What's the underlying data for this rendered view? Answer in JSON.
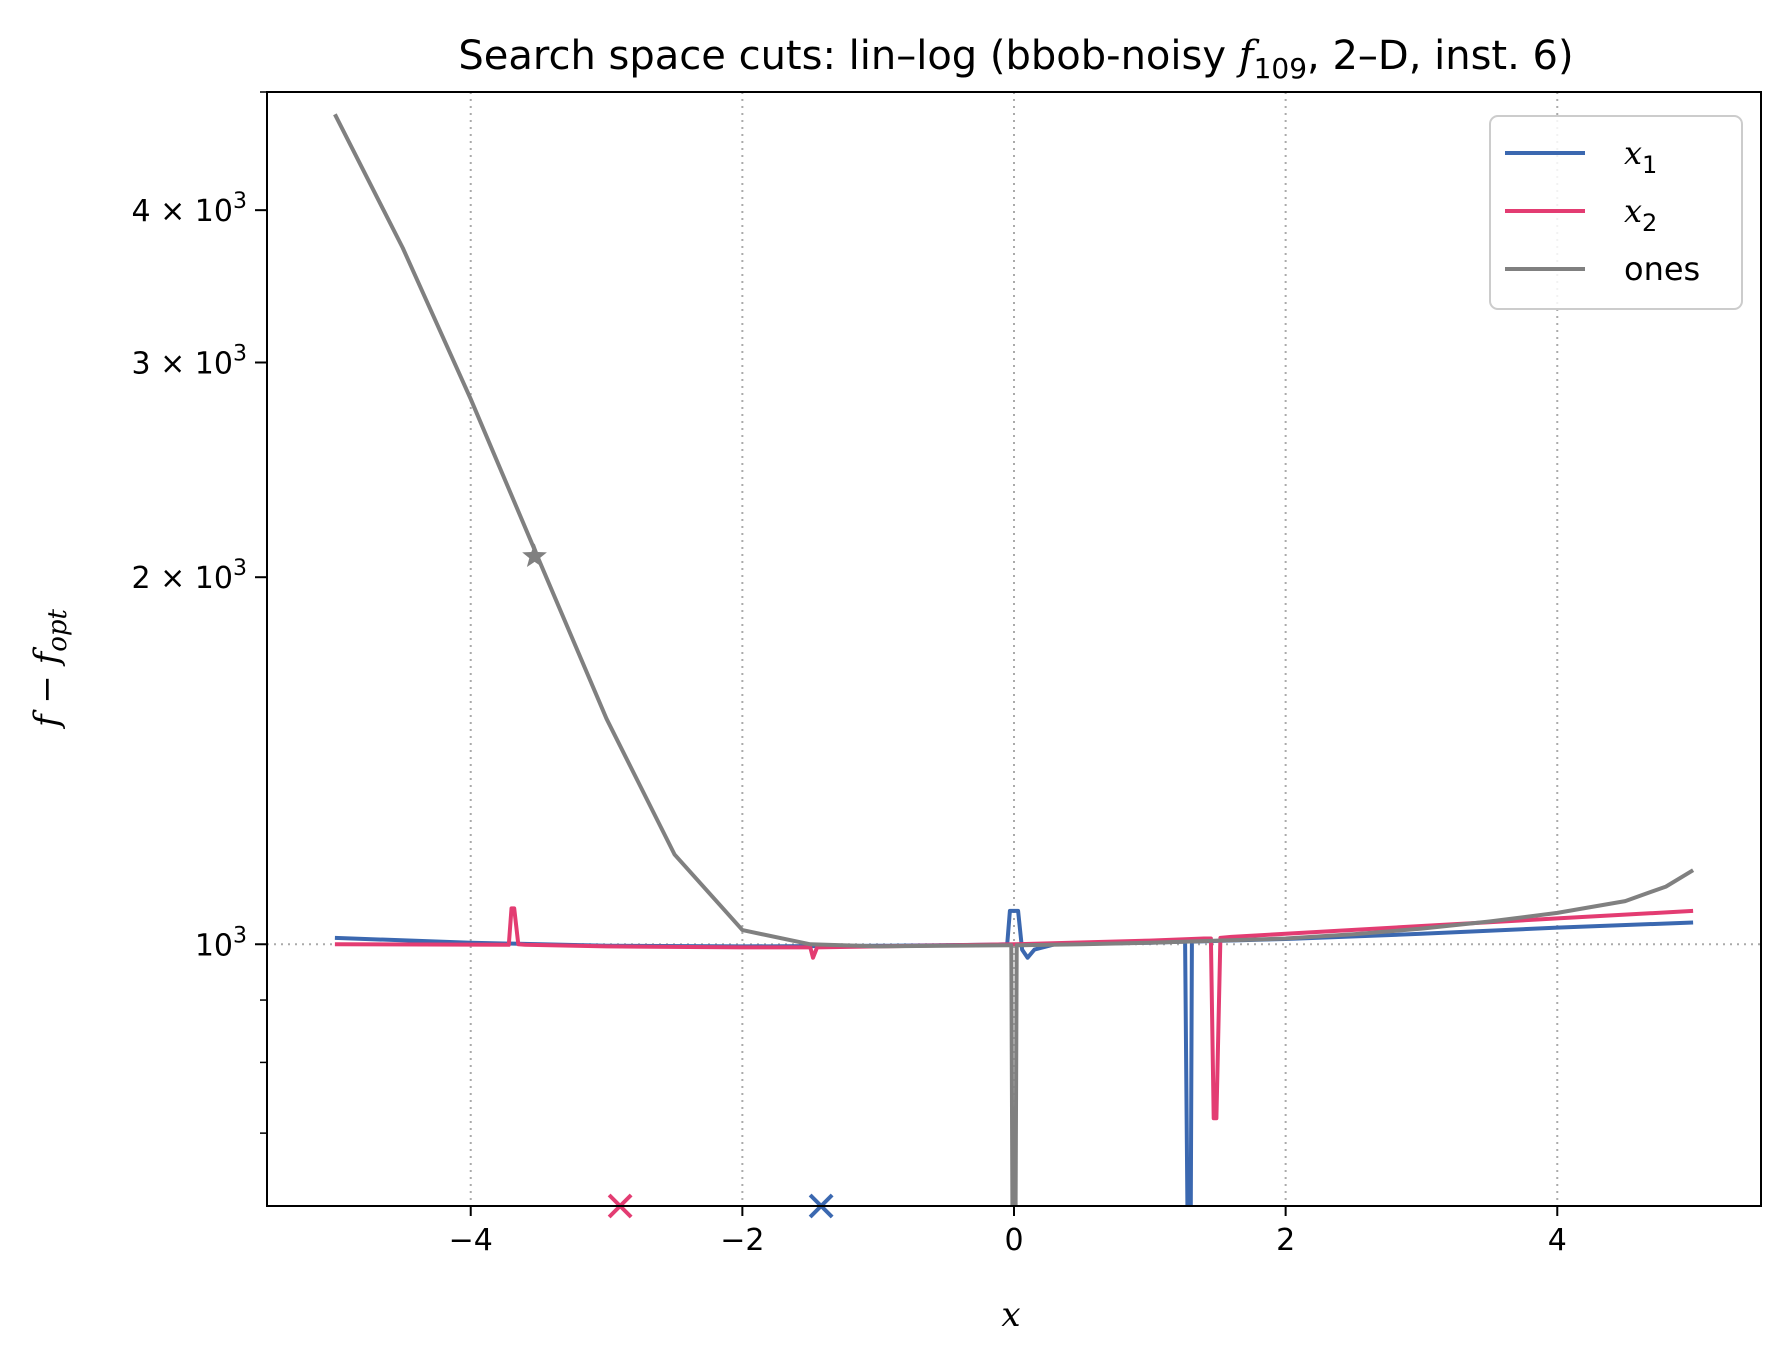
{
  "chart_data": {
    "type": "line",
    "title": {
      "prefix": "Search space cuts: lin–log (bbob-noisy ",
      "func_symbol": "f",
      "func_subscript": "109",
      "suffix": ", 2–D, inst. 6)"
    },
    "xlabel": "x",
    "ylabel": {
      "base": "f − f",
      "subscript": "opt"
    },
    "xlim": [
      -5.5,
      5.5
    ],
    "ylim": [
      610,
      5000
    ],
    "yscale": "log",
    "xticks": [
      {
        "value": -4,
        "label": "−4"
      },
      {
        "value": -2,
        "label": "−2"
      },
      {
        "value": 0,
        "label": "0"
      },
      {
        "value": 2,
        "label": "2"
      },
      {
        "value": 4,
        "label": "4"
      }
    ],
    "yticks": [
      {
        "value": 1000,
        "mantissa": "",
        "base": "10",
        "exponent": "3"
      },
      {
        "value": 2000,
        "mantissa": "2 × ",
        "base": "10",
        "exponent": "3"
      },
      {
        "value": 3000,
        "mantissa": "3 × ",
        "base": "10",
        "exponent": "3"
      },
      {
        "value": 4000,
        "mantissa": "4 × ",
        "base": "10",
        "exponent": "3"
      }
    ],
    "yminor": [
      700,
      800,
      900,
      5000
    ],
    "grid": "vertical dotted",
    "reference_line_y": 1000,
    "legend": {
      "placement": "top-right"
    },
    "series": [
      {
        "name": "x",
        "name_subscript": "1",
        "color": "#3b68b0",
        "x": [
          -5,
          -4,
          -3,
          -2,
          -1,
          -0.2,
          -0.05,
          -0.03,
          0.03,
          0.06,
          0.1,
          0.15,
          0.3,
          1,
          1.25,
          1.26,
          1.28,
          1.3,
          1.31,
          2,
          3,
          4,
          5
        ],
        "y": [
          1012,
          1003,
          997,
          996,
          997,
          999,
          1000,
          1065,
          1065,
          990,
          975,
          990,
          1000,
          1003,
          1005,
          1005,
          560,
          560,
          1005,
          1010,
          1020,
          1032,
          1042
        ]
      },
      {
        "name": "x",
        "name_subscript": "2",
        "color": "#e33c72",
        "x": [
          -5,
          -3.72,
          -3.7,
          -3.68,
          -3.65,
          -3.6,
          -3,
          -2,
          -1.5,
          -1.48,
          -1.45,
          -1,
          0,
          1,
          1.4,
          1.45,
          1.47,
          1.49,
          1.52,
          1.6,
          2,
          3,
          4,
          5
        ],
        "y": [
          1000,
          999,
          1070,
          1070,
          1000,
          999,
          996,
          994,
          994,
          975,
          994,
          996,
          1000,
          1007,
          1011,
          1011,
          720,
          720,
          1012,
          1014,
          1020,
          1035,
          1050,
          1065
        ]
      },
      {
        "name": "ones",
        "color": "#808080",
        "x": [
          -5,
          -4.5,
          -4,
          -3.5,
          -3,
          -2.5,
          -2,
          -1.5,
          -1,
          -0.5,
          -0.05,
          -0.02,
          -0.01,
          0.01,
          0.02,
          0.05,
          0.5,
          1,
          1.5,
          2,
          2.5,
          3,
          3.5,
          4,
          4.5,
          4.8,
          5
        ],
        "y": [
          4794,
          3724,
          2800,
          2069,
          1531,
          1185,
          1027,
          1000,
          996,
          997,
          998,
          998,
          560,
          560,
          998,
          998,
          1000,
          1003,
          1007,
          1011,
          1019,
          1030,
          1044,
          1061,
          1085,
          1115,
          1150
        ]
      }
    ],
    "markers": [
      {
        "symbol": "star",
        "x": -3.53,
        "y": 2080,
        "color": "#808080"
      },
      {
        "symbol": "x",
        "x": -2.9,
        "y": 610,
        "color": "#e33c72"
      },
      {
        "symbol": "x",
        "x": -1.42,
        "y": 610,
        "color": "#3b68b0"
      }
    ]
  }
}
